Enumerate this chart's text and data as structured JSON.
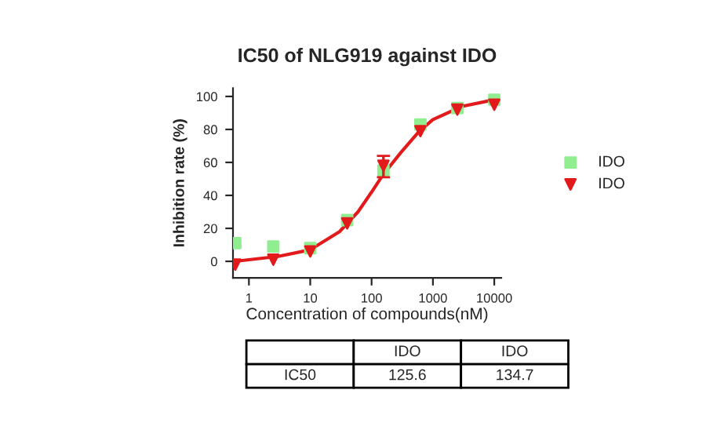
{
  "chart_data": {
    "type": "scatter",
    "title": "IC50 of NLG919 against IDO",
    "xlabel": "Concentration of compounds(nM)",
    "ylabel": "Inhibition rate (%)",
    "log": "x",
    "xlim": [
      0.55,
      13000
    ],
    "xticks": [
      1,
      10,
      100,
      1000,
      10000
    ],
    "ylim": [
      -10,
      105
    ],
    "yticks": [
      0,
      20,
      40,
      60,
      80,
      100
    ],
    "grid": false,
    "legend": "right",
    "series": [
      {
        "name": "IDO",
        "color": "#90ee90",
        "marker": "square",
        "x": [
          0.6,
          2.5,
          10,
          40,
          156,
          625,
          2500,
          10000
        ],
        "values": [
          11,
          9,
          8,
          25,
          55,
          83,
          93,
          98
        ]
      },
      {
        "type": "line",
        "color": "#e31a1c",
        "marker": "none",
        "x": [
          0.6,
          1,
          3,
          10,
          30,
          60,
          100,
          150,
          300,
          600,
          1000,
          3000,
          10000
        ],
        "values": [
          0,
          1,
          3,
          7,
          18,
          30,
          42,
          52,
          66,
          79,
          86,
          94,
          98
        ]
      },
      {
        "name": "IDO",
        "color": "#e31a1c",
        "marker": "triangle",
        "x": [
          0.6,
          2.5,
          10,
          40,
          156,
          625,
          2500,
          10000
        ],
        "values": [
          -2,
          1,
          6,
          23,
          58,
          79,
          92,
          95
        ],
        "errors": [
          null,
          null,
          null,
          null,
          [
            51,
            64
          ],
          null,
          null,
          null
        ]
      }
    ],
    "annotations": [
      "IDO",
      "IDO",
      "IC50",
      "125.6",
      "134.7"
    ]
  }
}
